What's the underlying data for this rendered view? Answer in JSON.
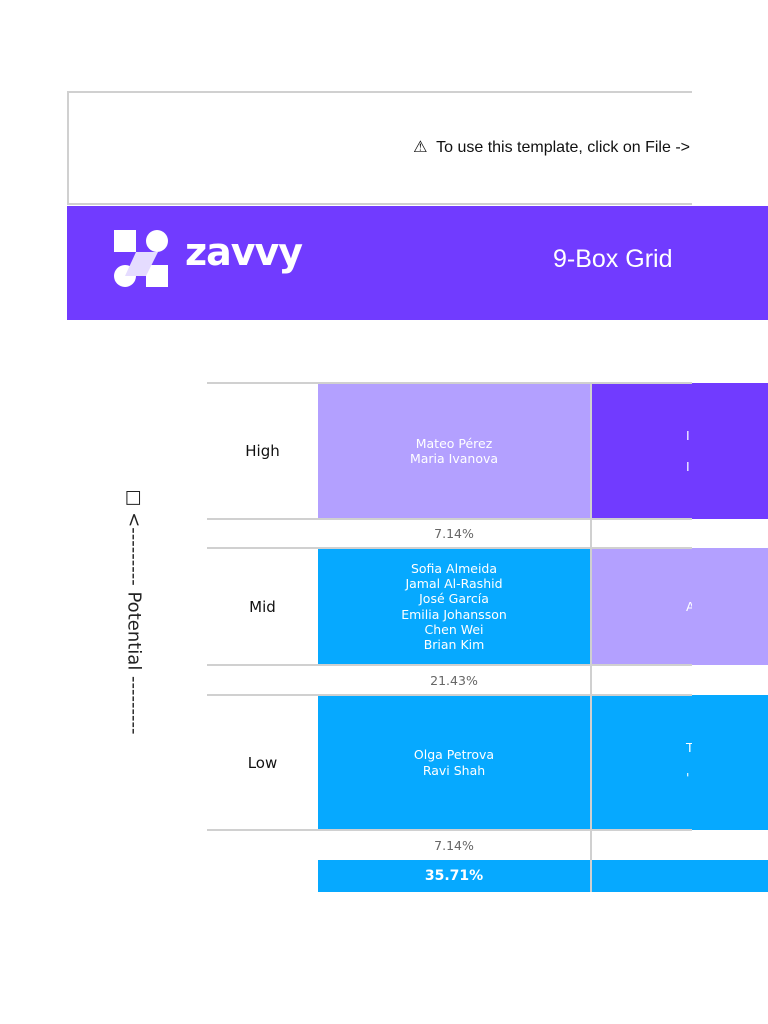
{
  "notice": {
    "icon": "⚠",
    "text": "To use this template, click on File ->"
  },
  "header": {
    "logo": "zavvy",
    "title": "9-Box Grid"
  },
  "axis_label": "□ <--------- Potential ---------",
  "grid": {
    "rows": [
      {
        "label": "High",
        "cells": [
          [
            "Mateo Pérez",
            "Maria Ivanova"
          ],
          [
            "I",
            "I"
          ]
        ],
        "percent": "7.14%"
      },
      {
        "label": "Mid",
        "cells": [
          [
            "Sofia Almeida",
            "Jamal Al-Rashid",
            "José García",
            "Emilia Johansson",
            "Chen Wei",
            "Brian Kim"
          ],
          [
            "Al"
          ]
        ],
        "percent": "21.43%"
      },
      {
        "label": "Low",
        "cells": [
          [
            "Olga Petrova",
            "Ravi Shah"
          ],
          [
            "T",
            "'"
          ]
        ],
        "percent": "7.14%"
      }
    ],
    "total": "35.71%"
  }
}
